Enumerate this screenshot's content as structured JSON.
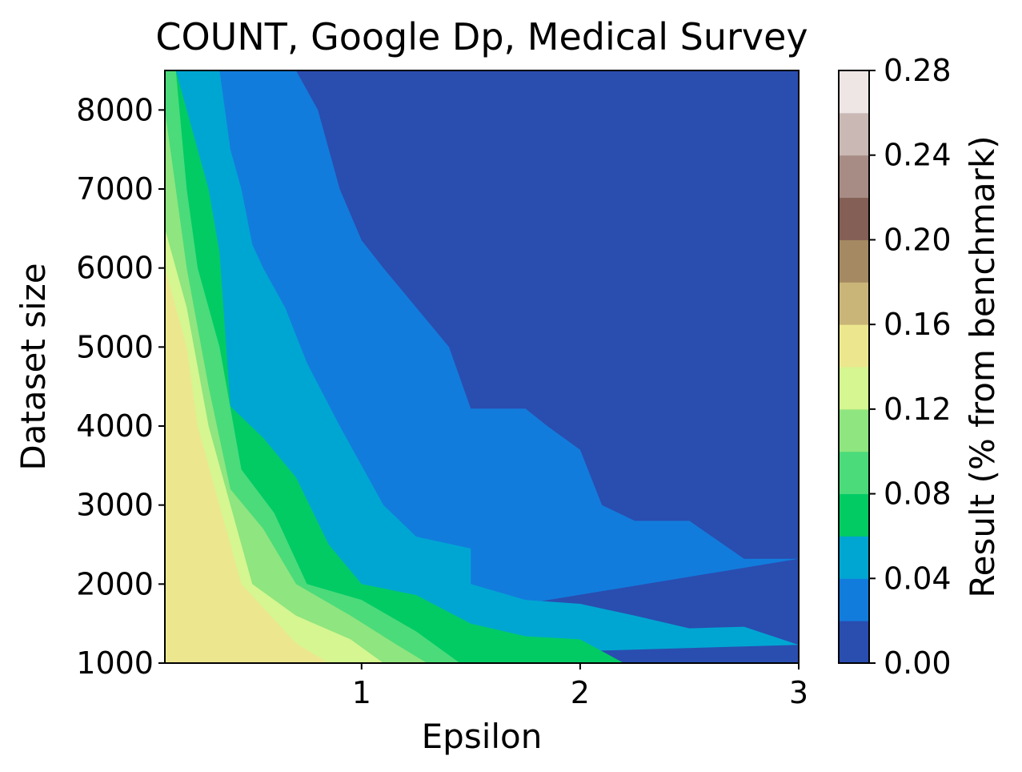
{
  "chart_data": {
    "type": "contour",
    "title": "COUNT, Google Dp, Medical Survey",
    "xlabel": "Epsilon",
    "ylabel": "Dataset size",
    "colorbar_label": "Result (% from benchmark)",
    "xlim": [
      0.1,
      3.0
    ],
    "ylim": [
      1000,
      8500
    ],
    "xticks": [
      1,
      2,
      3
    ],
    "xtick_labels": [
      "1",
      "2",
      "3"
    ],
    "yticks": [
      1000,
      2000,
      3000,
      4000,
      5000,
      6000,
      7000,
      8000
    ],
    "ytick_labels": [
      "1000",
      "2000",
      "3000",
      "4000",
      "5000",
      "6000",
      "7000",
      "8000"
    ],
    "colorbar_ticks": [
      0.0,
      0.04,
      0.08,
      0.12,
      0.16,
      0.2,
      0.24,
      0.28
    ],
    "colorbar_tick_labels": [
      "0.00",
      "0.04",
      "0.08",
      "0.12",
      "0.16",
      "0.20",
      "0.24",
      "0.28"
    ],
    "levels": [
      0.0,
      0.02,
      0.04,
      0.06,
      0.08,
      0.1,
      0.12,
      0.14,
      0.16,
      0.18,
      0.2,
      0.22,
      0.24,
      0.26,
      0.28
    ],
    "level_colors": [
      "#2a4db0",
      "#127cdc",
      "#00a6d2",
      "#02cb64",
      "#4bdb7a",
      "#8fe57f",
      "#d5f690",
      "#ece78f",
      "#c9b578",
      "#a48962",
      "#835f55",
      "#a68c84",
      "#c9b8b3",
      "#ede6e5"
    ],
    "contour_boundaries": [
      {
        "level": 0.02,
        "points": [
          [
            3.0,
            2320
          ],
          [
            2.75,
            2320
          ],
          [
            2.5,
            2800
          ],
          [
            2.25,
            2800
          ],
          [
            2.1,
            3000
          ],
          [
            2.0,
            3700
          ],
          [
            1.85,
            4000
          ],
          [
            1.75,
            4220
          ],
          [
            1.5,
            4220
          ],
          [
            1.4,
            5000
          ],
          [
            1.25,
            5500
          ],
          [
            1.1,
            6000
          ],
          [
            1.0,
            6350
          ],
          [
            0.9,
            7000
          ],
          [
            0.8,
            8000
          ],
          [
            0.7,
            8500
          ]
        ]
      },
      {
        "level": 0.04,
        "points": [
          [
            3.0,
            1230
          ],
          [
            2.75,
            1460
          ],
          [
            2.5,
            1440
          ],
          [
            2.25,
            1600
          ],
          [
            2.0,
            1750
          ],
          [
            1.75,
            1800
          ],
          [
            1.5,
            2000
          ],
          [
            1.5,
            2450
          ],
          [
            1.25,
            2600
          ],
          [
            1.1,
            3000
          ],
          [
            1.0,
            3500
          ],
          [
            0.9,
            4000
          ],
          [
            0.75,
            4800
          ],
          [
            0.65,
            5500
          ],
          [
            0.55,
            6000
          ],
          [
            0.5,
            6300
          ],
          [
            0.45,
            7000
          ],
          [
            0.4,
            7500
          ],
          [
            0.35,
            8500
          ]
        ]
      },
      {
        "level": 0.06,
        "points": [
          [
            2.2,
            1000
          ],
          [
            2.0,
            1300
          ],
          [
            1.75,
            1340
          ],
          [
            1.5,
            1500
          ],
          [
            1.25,
            1860
          ],
          [
            1.0,
            2000
          ],
          [
            0.85,
            2500
          ],
          [
            0.7,
            3350
          ],
          [
            0.55,
            3850
          ],
          [
            0.4,
            4250
          ],
          [
            0.35,
            6200
          ],
          [
            0.3,
            7000
          ],
          [
            0.15,
            8500
          ]
        ]
      },
      {
        "level": 0.08,
        "points": [
          [
            1.45,
            1000
          ],
          [
            1.25,
            1400
          ],
          [
            1.0,
            1800
          ],
          [
            0.75,
            2000
          ],
          [
            0.6,
            2900
          ],
          [
            0.45,
            3450
          ],
          [
            0.35,
            5000
          ],
          [
            0.25,
            6000
          ],
          [
            0.2,
            7000
          ],
          [
            0.15,
            8500
          ]
        ]
      },
      {
        "level": 0.1,
        "points": [
          [
            1.3,
            1000
          ],
          [
            1.15,
            1250
          ],
          [
            0.95,
            1600
          ],
          [
            0.7,
            2000
          ],
          [
            0.55,
            2700
          ],
          [
            0.4,
            3200
          ],
          [
            0.3,
            4500
          ],
          [
            0.2,
            6000
          ],
          [
            0.15,
            7000
          ],
          [
            0.1,
            8000
          ]
        ]
      },
      {
        "level": 0.12,
        "points": [
          [
            1.1,
            1000
          ],
          [
            0.95,
            1300
          ],
          [
            0.7,
            1600
          ],
          [
            0.5,
            2000
          ],
          [
            0.4,
            3000
          ],
          [
            0.3,
            4000
          ],
          [
            0.2,
            5500
          ],
          [
            0.1,
            6500
          ]
        ]
      },
      {
        "level": 0.14,
        "points": [
          [
            0.85,
            1000
          ],
          [
            0.7,
            1250
          ],
          [
            0.45,
            2000
          ],
          [
            0.35,
            3000
          ],
          [
            0.25,
            4000
          ],
          [
            0.2,
            5000
          ],
          [
            0.1,
            6000
          ]
        ]
      }
    ]
  }
}
